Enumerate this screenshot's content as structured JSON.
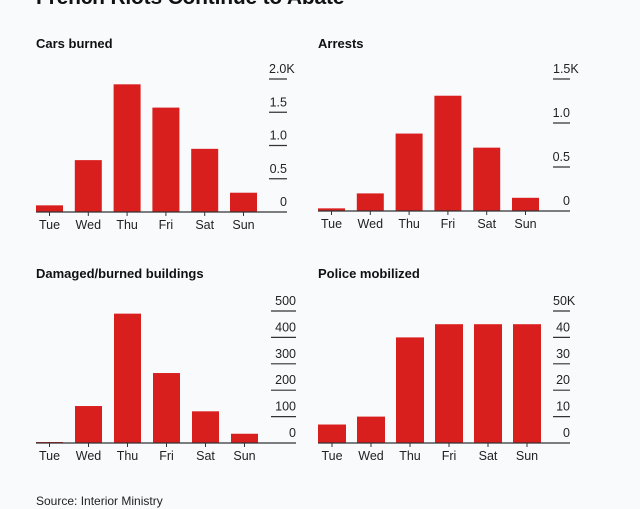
{
  "title": "French Riots Continue to Abate",
  "source": "Source: Interior Ministry",
  "colors": {
    "bar": "#d91e1e",
    "axis": "#333333",
    "background": "#f9fafc"
  },
  "chart_data": [
    {
      "type": "bar",
      "title": "Cars burned",
      "categories": [
        "Tue",
        "Wed",
        "Thu",
        "Fri",
        "Sat",
        "Sun"
      ],
      "values": [
        100,
        780,
        1920,
        1570,
        950,
        290
      ],
      "unit": "count",
      "ylim": [
        0,
        2000
      ],
      "yticks": [
        0,
        500,
        1000,
        1500,
        2000
      ],
      "ytick_labels": [
        "0",
        "0.5",
        "1.0",
        "1.5",
        "2.0K"
      ],
      "xlabel": "",
      "ylabel": "",
      "axis_position": "right",
      "grid": false
    },
    {
      "type": "bar",
      "title": "Arrests",
      "categories": [
        "Tue",
        "Wed",
        "Thu",
        "Fri",
        "Sat",
        "Sun"
      ],
      "values": [
        30,
        200,
        880,
        1310,
        720,
        150
      ],
      "unit": "count",
      "ylim": [
        0,
        1500
      ],
      "yticks": [
        0,
        500,
        1000,
        1500
      ],
      "ytick_labels": [
        "0",
        "0.5",
        "1.0",
        "1.5K"
      ],
      "xlabel": "",
      "ylabel": "",
      "axis_position": "right",
      "grid": false
    },
    {
      "type": "bar",
      "title": "Damaged/burned buildings",
      "categories": [
        "Tue",
        "Wed",
        "Thu",
        "Fri",
        "Sat",
        "Sun"
      ],
      "values": [
        3,
        140,
        490,
        265,
        120,
        35
      ],
      "unit": "count",
      "ylim": [
        0,
        500
      ],
      "yticks": [
        0,
        100,
        200,
        300,
        400,
        500
      ],
      "ytick_labels": [
        "0",
        "100",
        "200",
        "300",
        "400",
        "500"
      ],
      "xlabel": "",
      "ylabel": "",
      "axis_position": "right",
      "grid": false
    },
    {
      "type": "bar",
      "title": "Police mobilized",
      "categories": [
        "Tue",
        "Wed",
        "Thu",
        "Fri",
        "Sat",
        "Sun"
      ],
      "values": [
        7000,
        10000,
        40000,
        45000,
        45000,
        45000
      ],
      "unit": "count",
      "ylim": [
        0,
        50000
      ],
      "yticks": [
        0,
        10000,
        20000,
        30000,
        40000,
        50000
      ],
      "ytick_labels": [
        "0",
        "10",
        "20",
        "30",
        "40",
        "50K"
      ],
      "xlabel": "",
      "ylabel": "",
      "axis_position": "right",
      "grid": false
    }
  ]
}
